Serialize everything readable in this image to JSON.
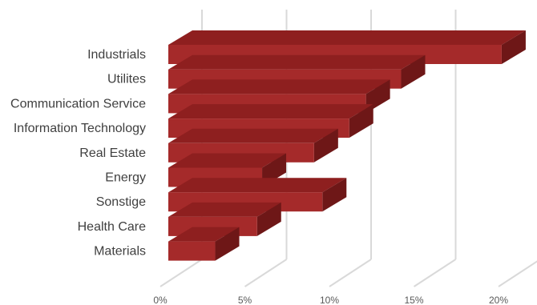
{
  "chart_data": {
    "type": "bar",
    "orientation": "horizontal",
    "style": "3d",
    "categories": [
      "Industrials",
      "Utilites",
      "Communication Service",
      "Information Technology",
      "Real Estate",
      "Energy",
      "Sonstige",
      "Health Care",
      "Materials"
    ],
    "values": [
      19.9,
      13.9,
      11.8,
      10.8,
      8.7,
      5.6,
      9.2,
      5.3,
      2.8
    ],
    "x_ticks": [
      "0%",
      "5%",
      "10%",
      "15%",
      "20%"
    ],
    "xlim": [
      0,
      20
    ],
    "grid": true,
    "colors": {
      "bar_front": "#A52A2A",
      "bar_top": "#8E1F1F",
      "bar_side": "#6E1717",
      "grid": "#D9D9D9"
    }
  }
}
